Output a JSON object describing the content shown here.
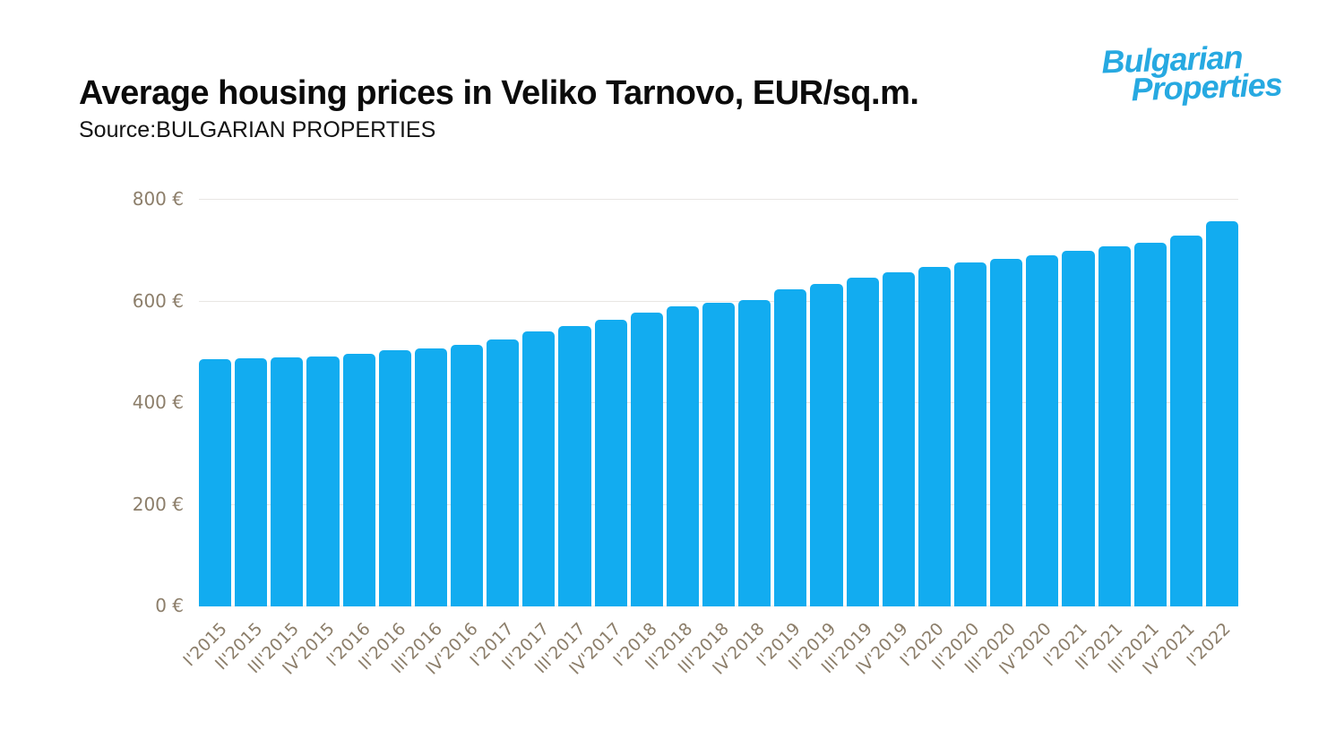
{
  "header": {
    "title": "Average housing prices in Veliko Tarnovo, EUR/sq.m.",
    "source": "Source:BULGARIAN PROPERTIES",
    "logo": {
      "line1": "Bulgarian",
      "line2": "Properties",
      "color": "#27a9e1"
    }
  },
  "chart_data": {
    "type": "bar",
    "title": "Average housing prices in Veliko Tarnovo, EUR/sq.m.",
    "source": "Source:BULGARIAN PROPERTIES",
    "xlabel": "",
    "ylabel": "",
    "ylim": [
      0,
      800
    ],
    "grid": true,
    "legend": "none",
    "bar_color": "#12acf0",
    "gridline_color": "#e8e6e3",
    "baseline_color": "#efeeec",
    "tick_label_color": "#8c7e6a",
    "yticks": [
      {
        "value": 0,
        "label": "0 €"
      },
      {
        "value": 200,
        "label": "200 €"
      },
      {
        "value": 400,
        "label": "400 €"
      },
      {
        "value": 600,
        "label": "600 €"
      },
      {
        "value": 800,
        "label": "800 €"
      }
    ],
    "categories": [
      "I'2015",
      "II'2015",
      "III'2015",
      "IV'2015",
      "I'2016",
      "II'2016",
      "III'2016",
      "IV'2016",
      "I'2017",
      "II'2017",
      "III'2017",
      "IV'2017",
      "I'2018",
      "II'2018",
      "III'2018",
      "IV'2018",
      "I'2019",
      "II'2019",
      "III'2019",
      "IV'2019",
      "I'2020",
      "II'2020",
      "III'2020",
      "IV'2020",
      "I'2021",
      "II'2021",
      "III'2021",
      "IV'2021",
      "I'2022"
    ],
    "values": [
      487,
      489,
      490,
      492,
      497,
      504,
      507,
      515,
      526,
      541,
      552,
      564,
      578,
      591,
      597,
      603,
      623,
      635,
      647,
      658,
      667,
      677,
      684,
      691,
      700,
      708,
      716,
      730,
      757
    ]
  }
}
